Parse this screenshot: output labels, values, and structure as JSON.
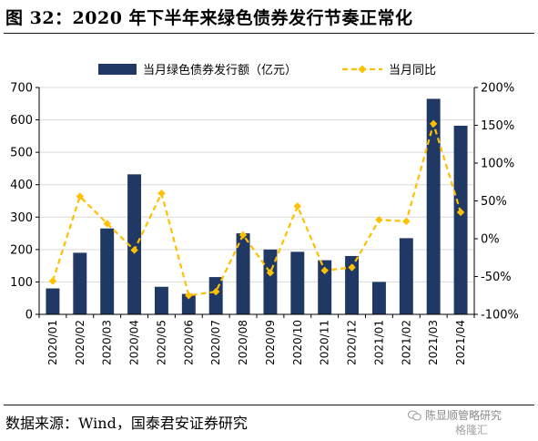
{
  "figure": {
    "title": "图 32：2020 年下半年来绿色债券发行节奏正常化",
    "source": "数据来源：Wind，国泰君安证券研究",
    "watermark": "陈显顺管略研究",
    "watermark_sub": "格隆汇"
  },
  "colors": {
    "bar": "#1f3864",
    "line": "#ffc000",
    "grid": "#d9d9d9",
    "axis": "#000000"
  },
  "chart_data": {
    "type": "bar",
    "categories": [
      "2020/01",
      "2020/02",
      "2020/03",
      "2020/04",
      "2020/05",
      "2020/06",
      "2020/07",
      "2020/08",
      "2020/09",
      "2020/10",
      "2020/11",
      "2020/12",
      "2021/01",
      "2021/02",
      "2021/03",
      "2021/04"
    ],
    "series": [
      {
        "name": "当月绿色债券发行额（亿元）",
        "type": "bar",
        "axis": "left",
        "values": [
          80,
          190,
          265,
          432,
          85,
          63,
          115,
          250,
          200,
          193,
          167,
          180,
          100,
          235,
          665,
          582
        ]
      },
      {
        "name": "当月同比",
        "type": "line",
        "axis": "right",
        "unit": "%",
        "values": [
          -56,
          56,
          20,
          -15,
          60,
          -75,
          -70,
          5,
          -45,
          43,
          -42,
          -38,
          25,
          23,
          152,
          35
        ]
      }
    ],
    "ylim": [
      0,
      700
    ],
    "yticks": [
      "0",
      "100",
      "200",
      "300",
      "400",
      "500",
      "600",
      "700"
    ],
    "y2lim": [
      -100,
      200
    ],
    "y2ticks": [
      "-100%",
      "-50%",
      "0%",
      "50%",
      "100%",
      "150%",
      "200%"
    ],
    "grid": "horizontal",
    "legend": "top"
  }
}
